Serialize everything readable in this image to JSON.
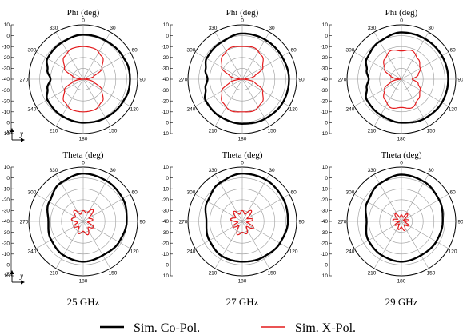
{
  "chart_data": {
    "type": "polar-radiation-pattern",
    "angle_ticks": [
      "0",
      "30",
      "60",
      "90",
      "120",
      "150",
      "180",
      "210",
      "240",
      "270",
      "300",
      "330"
    ],
    "radial_ticks": [
      "10",
      "0",
      "-10",
      "-20",
      "-30",
      "-40",
      "-30",
      "-20",
      "-10",
      "0",
      "10"
    ],
    "r_range_db": [
      -40,
      10
    ],
    "row_titles": [
      "Phi (deg)",
      "Theta (deg)"
    ],
    "row_axis_labels": [
      {
        "vertical": "x",
        "horizontal": "y"
      },
      {
        "vertical": "z",
        "horizontal": "y"
      }
    ],
    "frequencies": [
      "25 GHz",
      "27 GHz",
      "29 GHz"
    ],
    "legend": [
      {
        "label": "Sim. Co-Pol.",
        "color": "#000000"
      },
      {
        "label": "Sim. X-Pol.",
        "color": "#e41a1c"
      }
    ],
    "panels": [
      {
        "row": 0,
        "col": 0,
        "title": "Phi (deg)",
        "co_pol_db": {
          "angles": [
            0,
            30,
            60,
            75,
            90,
            105,
            120,
            150,
            180,
            210,
            240,
            255,
            270,
            285,
            300,
            330
          ],
          "values": [
            1,
            1,
            2,
            3,
            3,
            3,
            2,
            1,
            0,
            -1,
            -2,
            -6,
            -10,
            -6,
            -2,
            -1
          ]
        },
        "x_pol_db": {
          "angles": [
            0,
            20,
            40,
            60,
            75,
            90,
            105,
            120,
            140,
            160,
            180,
            200,
            220,
            240,
            255,
            270,
            285,
            300,
            320,
            340
          ],
          "values": [
            -10,
            -10,
            -13,
            -20,
            -30,
            -40,
            -30,
            -20,
            -13,
            -10,
            -10,
            -10,
            -13,
            -20,
            -30,
            -40,
            -30,
            -20,
            -13,
            -10
          ]
        }
      },
      {
        "row": 0,
        "col": 1,
        "title": "Phi (deg)",
        "co_pol_db": {
          "angles": [
            0,
            30,
            60,
            90,
            120,
            150,
            180,
            210,
            240,
            255,
            270,
            285,
            300,
            330
          ],
          "values": [
            2,
            2,
            2,
            3,
            3,
            2,
            1,
            0,
            -1,
            -5,
            -8,
            -5,
            -2,
            -1
          ]
        },
        "x_pol_db": {
          "angles": [
            0,
            20,
            40,
            60,
            75,
            90,
            105,
            120,
            140,
            160,
            180,
            200,
            220,
            240,
            255,
            270,
            285,
            300,
            320,
            340
          ],
          "values": [
            -10,
            -9,
            -12,
            -18,
            -28,
            -40,
            -28,
            -18,
            -12,
            -9,
            -10,
            -9,
            -12,
            -18,
            -28,
            -40,
            -28,
            -18,
            -12,
            -9
          ]
        }
      },
      {
        "row": 0,
        "col": 2,
        "title": "Phi (deg)",
        "co_pol_db": {
          "angles": [
            0,
            30,
            60,
            90,
            120,
            150,
            180,
            210,
            240,
            255,
            270,
            285,
            300,
            330
          ],
          "values": [
            3,
            3,
            3,
            3,
            3,
            2,
            0,
            -2,
            -3,
            -7,
            -10,
            -7,
            -3,
            0
          ]
        },
        "x_pol_db": {
          "angles": [
            0,
            20,
            40,
            60,
            75,
            90,
            105,
            120,
            140,
            160,
            180,
            200,
            220,
            240,
            255,
            270,
            285,
            300,
            320,
            340
          ],
          "values": [
            -14,
            -12,
            -16,
            -20,
            -24,
            -30,
            -24,
            -20,
            -16,
            -12,
            -14,
            -12,
            -16,
            -22,
            -30,
            -40,
            -30,
            -22,
            -16,
            -12
          ]
        }
      },
      {
        "row": 1,
        "col": 0,
        "title": "Theta (deg)",
        "frequency": "25 GHz",
        "co_pol_db": {
          "angles": [
            0,
            30,
            60,
            90,
            120,
            150,
            180,
            210,
            240,
            270,
            300,
            330
          ],
          "values": [
            4,
            3,
            2,
            0,
            -2,
            -4,
            -3,
            -4,
            -6,
            -8,
            -4,
            1
          ]
        },
        "x_pol_db": {
          "angles": [
            0,
            20,
            40,
            60,
            80,
            100,
            120,
            140,
            160,
            180,
            200,
            220,
            240,
            260,
            280,
            300,
            320,
            340
          ],
          "values": [
            -30,
            -32,
            -26,
            -34,
            -31,
            -36,
            -29,
            -33,
            -27,
            -31,
            -28,
            -34,
            -30,
            -35,
            -29,
            -32,
            -27,
            -33
          ]
        }
      },
      {
        "row": 1,
        "col": 1,
        "title": "Theta (deg)",
        "frequency": "27 GHz",
        "co_pol_db": {
          "angles": [
            0,
            30,
            60,
            90,
            120,
            150,
            180,
            210,
            240,
            270,
            300,
            330
          ],
          "values": [
            4,
            4,
            3,
            2,
            0,
            -2,
            -3,
            -3,
            -5,
            -7,
            -3,
            1
          ]
        },
        "x_pol_db": {
          "angles": [
            0,
            20,
            40,
            60,
            80,
            100,
            120,
            140,
            160,
            180,
            200,
            220,
            240,
            260,
            280,
            300,
            320,
            340
          ],
          "values": [
            -30,
            -33,
            -27,
            -35,
            -30,
            -36,
            -28,
            -34,
            -28,
            -30,
            -27,
            -35,
            -30,
            -36,
            -29,
            -33,
            -28,
            -33
          ]
        }
      },
      {
        "row": 1,
        "col": 2,
        "title": "Theta (deg)",
        "frequency": "29 GHz",
        "co_pol_db": {
          "angles": [
            0,
            30,
            60,
            90,
            120,
            150,
            180,
            210,
            240,
            270,
            300,
            330
          ],
          "values": [
            3,
            2,
            0,
            -2,
            -3,
            -4,
            -3,
            -4,
            -5,
            -8,
            -4,
            0
          ]
        },
        "x_pol_db": {
          "angles": [
            0,
            20,
            40,
            60,
            80,
            100,
            120,
            140,
            160,
            180,
            200,
            220,
            240,
            260,
            280,
            300,
            320,
            340
          ],
          "values": [
            -34,
            -36,
            -31,
            -38,
            -33,
            -37,
            -32,
            -36,
            -31,
            -35,
            -32,
            -37,
            -33,
            -38,
            -32,
            -36,
            -31,
            -36
          ]
        }
      }
    ]
  }
}
